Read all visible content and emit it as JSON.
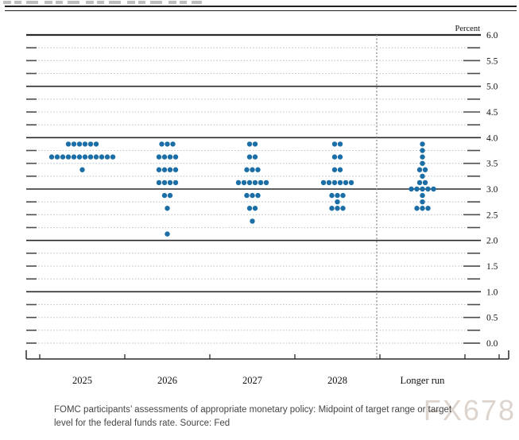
{
  "caption": {
    "text": "FOMC participants’ assessments of appropriate monetary policy: Midpoint of target range or target level for the federal funds rate. Source: Fed"
  },
  "watermark": {
    "text": "FX678"
  },
  "chart_data": {
    "type": "scatter",
    "subtype": "fomc-dot-plot",
    "ylabel": "Percent",
    "ylim": [
      0.0,
      6.0
    ],
    "y_tick_step": 0.5,
    "grid_step": 0.25,
    "y_tick_labels": [
      "6.0",
      "5.5",
      "5.0",
      "4.5",
      "4.0",
      "3.5",
      "3.0",
      "2.5",
      "2.0",
      "1.5",
      "1.0",
      "0.5",
      "0.0"
    ],
    "solid_lines": [
      6.0,
      5.0,
      4.0,
      3.0,
      2.0,
      1.0
    ],
    "categories": [
      "2025",
      "2026",
      "2027",
      "2028",
      "Longer run"
    ],
    "separator_before_category": "Longer run",
    "dot_color": "#1b6fa6",
    "participants_per_year": 19,
    "series": [
      {
        "category": "2025",
        "dots": [
          {
            "rate": 3.875,
            "count": 6
          },
          {
            "rate": 3.625,
            "count": 12
          },
          {
            "rate": 3.375,
            "count": 1
          }
        ]
      },
      {
        "category": "2026",
        "dots": [
          {
            "rate": 3.875,
            "count": 3
          },
          {
            "rate": 3.625,
            "count": 4
          },
          {
            "rate": 3.375,
            "count": 4
          },
          {
            "rate": 3.125,
            "count": 4
          },
          {
            "rate": 2.875,
            "count": 2
          },
          {
            "rate": 2.625,
            "count": 1
          },
          {
            "rate": 2.125,
            "count": 1
          }
        ]
      },
      {
        "category": "2027",
        "dots": [
          {
            "rate": 3.875,
            "count": 2
          },
          {
            "rate": 3.625,
            "count": 2
          },
          {
            "rate": 3.375,
            "count": 3
          },
          {
            "rate": 3.125,
            "count": 6
          },
          {
            "rate": 2.875,
            "count": 3
          },
          {
            "rate": 2.625,
            "count": 2
          },
          {
            "rate": 2.375,
            "count": 1
          }
        ]
      },
      {
        "category": "2028",
        "dots": [
          {
            "rate": 3.875,
            "count": 2
          },
          {
            "rate": 3.625,
            "count": 2
          },
          {
            "rate": 3.375,
            "count": 2
          },
          {
            "rate": 3.125,
            "count": 6
          },
          {
            "rate": 2.875,
            "count": 3
          },
          {
            "rate": 2.75,
            "count": 1
          },
          {
            "rate": 2.625,
            "count": 3
          }
        ]
      },
      {
        "category": "Longer run",
        "dots": [
          {
            "rate": 3.875,
            "count": 1
          },
          {
            "rate": 3.75,
            "count": 1
          },
          {
            "rate": 3.625,
            "count": 1
          },
          {
            "rate": 3.5,
            "count": 1
          },
          {
            "rate": 3.375,
            "count": 2
          },
          {
            "rate": 3.25,
            "count": 1
          },
          {
            "rate": 3.125,
            "count": 2
          },
          {
            "rate": 3.0,
            "count": 5
          },
          {
            "rate": 2.875,
            "count": 1
          },
          {
            "rate": 2.75,
            "count": 1
          },
          {
            "rate": 2.625,
            "count": 3
          }
        ]
      }
    ]
  }
}
